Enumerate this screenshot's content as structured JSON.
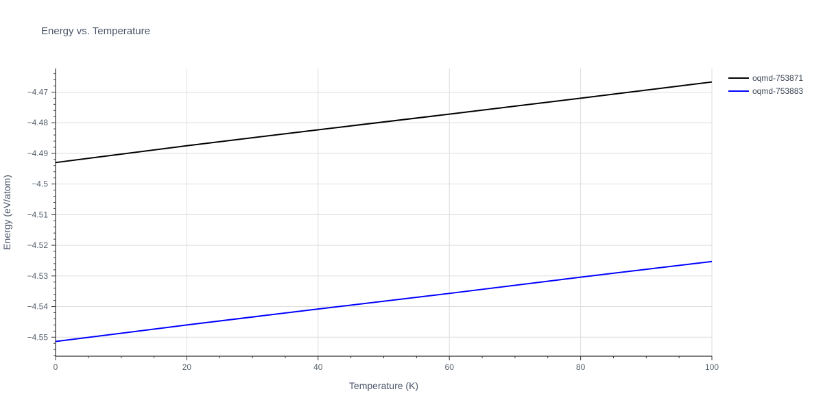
{
  "chart_data": {
    "type": "line",
    "title": "Energy vs. Temperature",
    "xlabel": "Temperature (K)",
    "ylabel": "Energy (eV/atom)",
    "xlim": [
      0,
      100
    ],
    "ylim": [
      -4.5562,
      -4.4623
    ],
    "x_ticks": [
      0,
      20,
      40,
      60,
      80,
      100
    ],
    "x_tick_labels": [
      "0",
      "20",
      "40",
      "60",
      "80",
      "100"
    ],
    "y_ticks": [
      -4.55,
      -4.54,
      -4.53,
      -4.52,
      -4.51,
      -4.5,
      -4.49,
      -4.48,
      -4.47
    ],
    "y_tick_labels": [
      "−4.55",
      "−4.54",
      "−4.53",
      "−4.52",
      "−4.51",
      "−4.5",
      "−4.49",
      "−4.48",
      "−4.47"
    ],
    "grid": true,
    "legend_position": "top-right",
    "series": [
      {
        "name": "oqmd-753871",
        "color": "#000000",
        "x": [
          0,
          20,
          40,
          60,
          80,
          100
        ],
        "y": [
          -4.493,
          -4.4875,
          -4.4823,
          -4.4772,
          -4.472,
          -4.4667
        ]
      },
      {
        "name": "oqmd-753883",
        "color": "#0000ff",
        "x": [
          0,
          20,
          40,
          60,
          80,
          100
        ],
        "y": [
          -4.5514,
          -4.546,
          -4.5408,
          -4.5357,
          -4.5304,
          -4.5253
        ]
      }
    ]
  }
}
